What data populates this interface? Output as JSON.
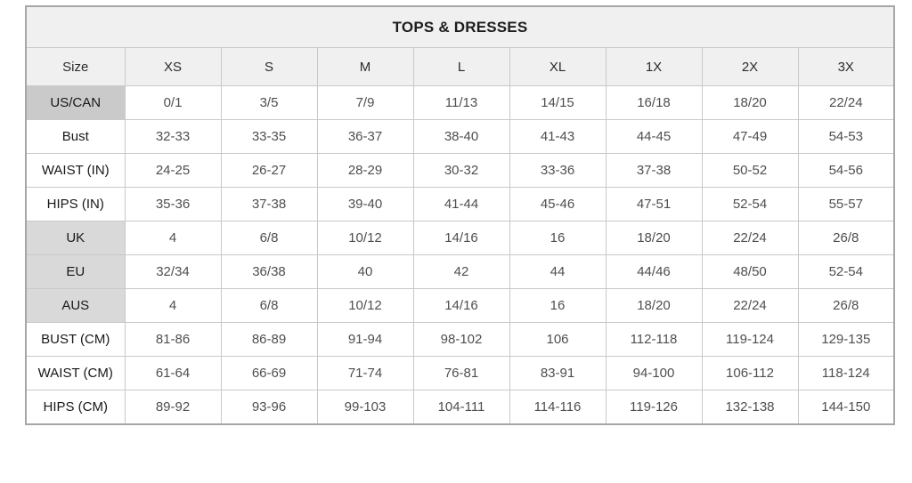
{
  "table": {
    "title": "TOPS & DRESSES",
    "columns": [
      "Size",
      "XS",
      "S",
      "M",
      "L",
      "XL",
      "1X",
      "2X",
      "3X"
    ],
    "rows": [
      {
        "label": "US/CAN",
        "shade": "dark",
        "values": [
          "0/1",
          "3/5",
          "7/9",
          "11/13",
          "14/15",
          "16/18",
          "18/20",
          "22/24"
        ]
      },
      {
        "label": "Bust",
        "shade": "none",
        "values": [
          "32-33",
          "33-35",
          "36-37",
          "38-40",
          "41-43",
          "44-45",
          "47-49",
          "54-53"
        ]
      },
      {
        "label": "WAIST (IN)",
        "shade": "none",
        "values": [
          "24-25",
          "26-27",
          "28-29",
          "30-32",
          "33-36",
          "37-38",
          "50-52",
          "54-56"
        ]
      },
      {
        "label": "HIPS (IN)",
        "shade": "none",
        "values": [
          "35-36",
          "37-38",
          "39-40",
          "41-44",
          "45-46",
          "47-51",
          "52-54",
          "55-57"
        ]
      },
      {
        "label": "UK",
        "shade": "light",
        "values": [
          "4",
          "6/8",
          "10/12",
          "14/16",
          "16",
          "18/20",
          "22/24",
          "26/8"
        ]
      },
      {
        "label": "EU",
        "shade": "light",
        "values": [
          "32/34",
          "36/38",
          "40",
          "42",
          "44",
          "44/46",
          "48/50",
          "52-54"
        ]
      },
      {
        "label": "AUS",
        "shade": "light",
        "values": [
          "4",
          "6/8",
          "10/12",
          "14/16",
          "16",
          "18/20",
          "22/24",
          "26/8"
        ]
      },
      {
        "label": "BUST (CM)",
        "shade": "none",
        "values": [
          "81-86",
          "86-89",
          "91-94",
          "98-102",
          "106",
          "112-118",
          "119-124",
          "129-135"
        ]
      },
      {
        "label": "WAIST (CM)",
        "shade": "none",
        "values": [
          "61-64",
          "66-69",
          "71-74",
          "76-81",
          "83-91",
          "94-100",
          "106-112",
          "118-124"
        ]
      },
      {
        "label": "HIPS (CM)",
        "shade": "none",
        "values": [
          "89-92",
          "93-96",
          "99-103",
          "104-111",
          "114-116",
          "119-126",
          "132-138",
          "144-150"
        ]
      }
    ],
    "colors": {
      "header_bg": "#f0f0f0",
      "shade_dark": "#c9cac9",
      "shade_light": "#d9d9d9",
      "inner_border": "#c9c9c9",
      "outer_border": "#a6a6a6",
      "data_text": "#4f4f4f",
      "label_text": "#181818"
    }
  }
}
